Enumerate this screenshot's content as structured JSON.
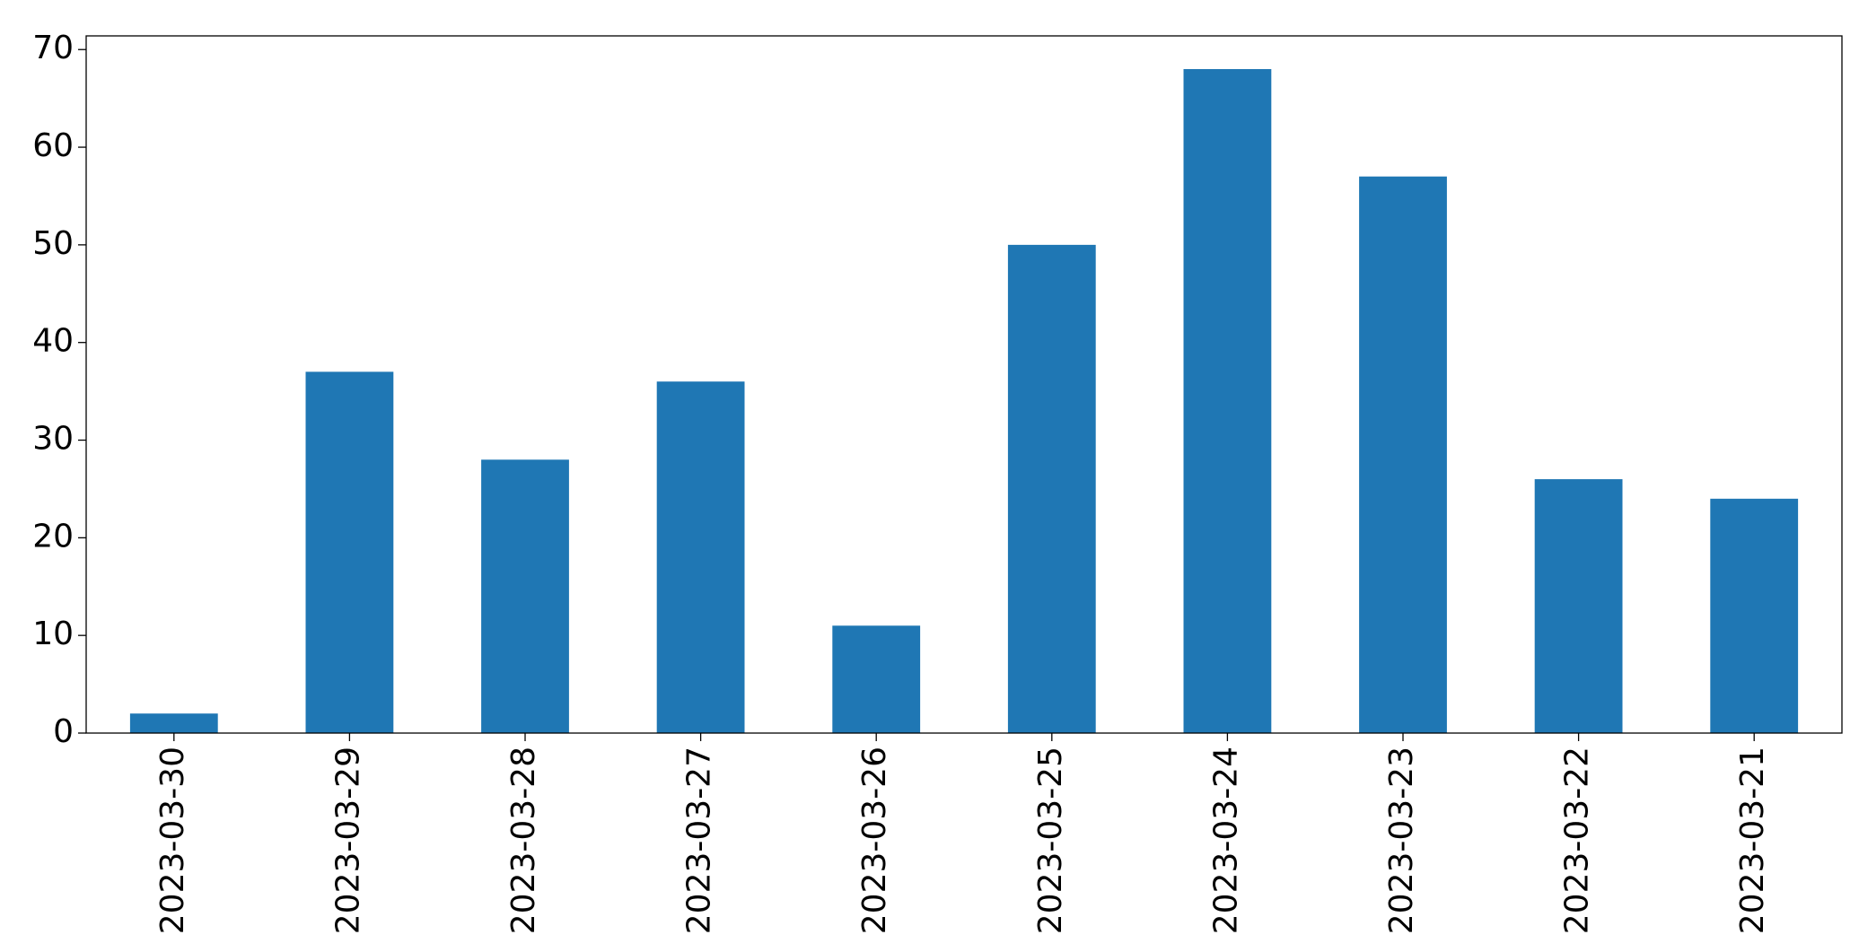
{
  "chart_data": {
    "type": "bar",
    "categories": [
      "2023-03-30",
      "2023-03-29",
      "2023-03-28",
      "2023-03-27",
      "2023-03-26",
      "2023-03-25",
      "2023-03-24",
      "2023-03-23",
      "2023-03-22",
      "2023-03-21"
    ],
    "values": [
      2,
      37,
      28,
      36,
      11,
      50,
      68,
      57,
      26,
      24
    ],
    "color": "#1f77b4",
    "ylim": [
      0,
      71.4
    ],
    "yticks": [
      0,
      10,
      20,
      30,
      40,
      50,
      60,
      70
    ],
    "grid": false
  }
}
